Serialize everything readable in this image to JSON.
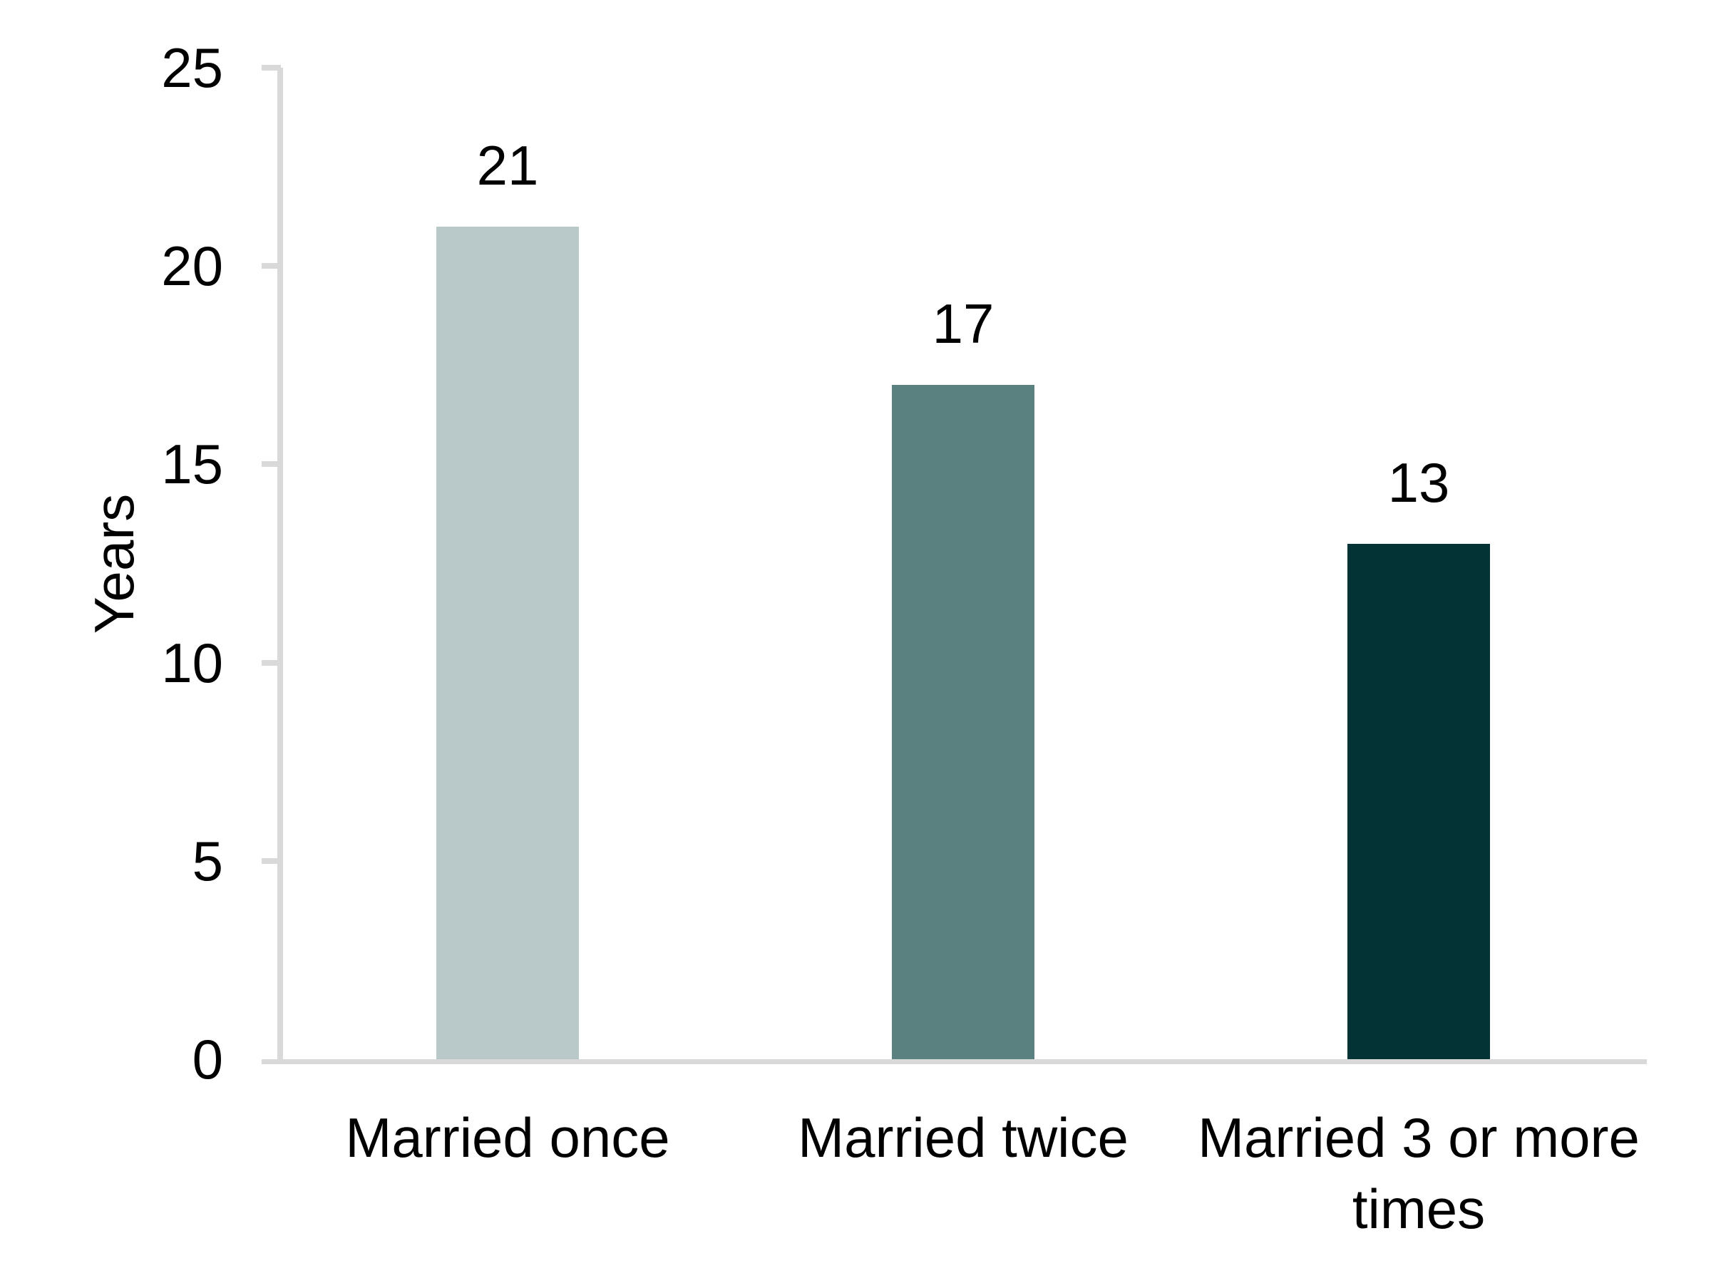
{
  "chart_data": {
    "type": "bar",
    "title": "",
    "categories": [
      "Married once",
      "Married twice",
      "Married 3 or more times"
    ],
    "category_lines": [
      [
        "Married once"
      ],
      [
        "Married twice"
      ],
      [
        "Married 3 or more",
        "times"
      ]
    ],
    "values": [
      21,
      17,
      13
    ],
    "data_labels": [
      "21",
      "17",
      "13"
    ],
    "xlabel": "",
    "ylabel": "Years",
    "ylim": [
      0,
      25
    ],
    "yticks": [
      0,
      5,
      10,
      15,
      20,
      25
    ],
    "ytick_labels": [
      "0",
      "5",
      "10",
      "15",
      "20",
      "25"
    ],
    "bar_colors": [
      "#b9c9ca",
      "#5a8180",
      "#033335"
    ],
    "axis_color": "#d9d9d9",
    "text_color": "#000000",
    "grid": "off",
    "legend": "none"
  }
}
